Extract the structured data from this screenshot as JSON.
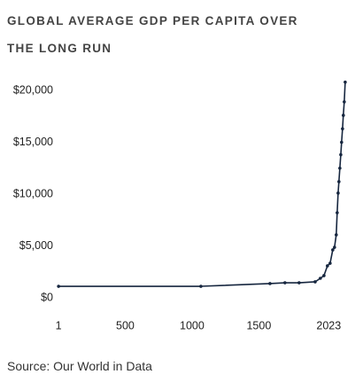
{
  "chart_data": {
    "type": "line",
    "title": "GLOBAL AVERAGE GDP PER CAPITA OVER THE LONG RUN",
    "source": "Source: Our World in Data",
    "x": [
      1,
      1066,
      1583,
      1695,
      1801,
      1921,
      1960,
      1987,
      2013,
      2033,
      2053,
      2066,
      2079,
      2086,
      2093,
      2099,
      2106,
      2113,
      2119,
      2126,
      2132,
      2139,
      2146
    ],
    "series": [
      {
        "name": "GDP per capita",
        "color": "#16263f",
        "values": [
          1110,
          1110,
          1370,
          1450,
          1450,
          1540,
          1880,
          2140,
          3080,
          3330,
          4620,
          4870,
          6070,
          8200,
          10100,
          11200,
          12500,
          13800,
          15000,
          16300,
          17600,
          18900,
          20800
        ]
      }
    ],
    "xlim": [
      0,
      2160
    ],
    "xticks": [
      1,
      500,
      1000,
      1500,
      2023
    ],
    "ylim": [
      0,
      21000
    ],
    "yticks": [
      {
        "value": 0,
        "label": "$0"
      },
      {
        "value": 5000,
        "label": "$5,000"
      },
      {
        "value": 10000,
        "label": "$10,000"
      },
      {
        "value": 15000,
        "label": "$15,000"
      },
      {
        "value": 20000,
        "label": "$20,000"
      }
    ],
    "grid": false
  }
}
